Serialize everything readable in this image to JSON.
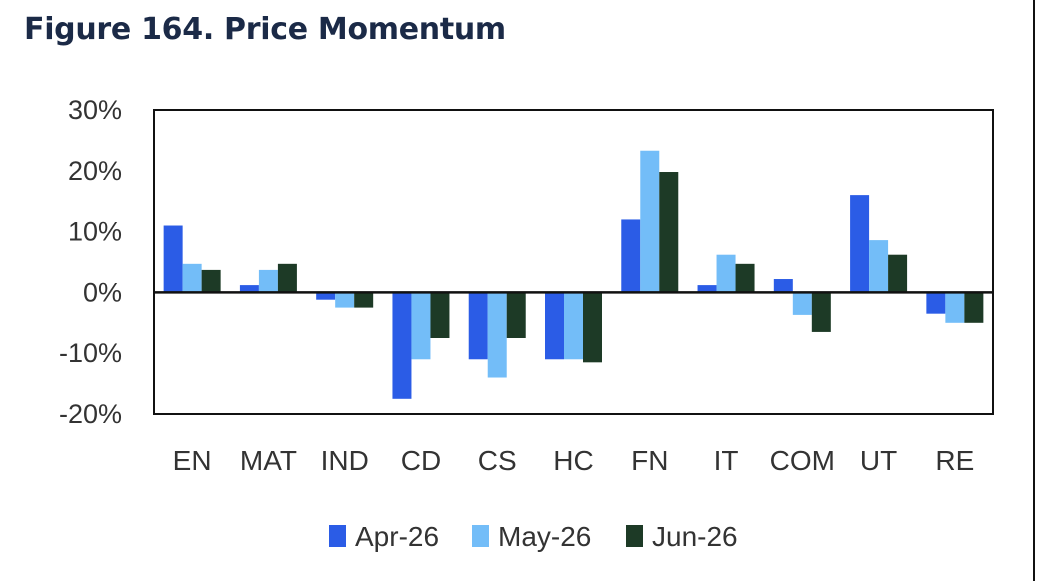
{
  "figure": {
    "title": "Figure 164. Price Momentum"
  },
  "chart_data": {
    "type": "bar",
    "title": "Figure 164. Price Momentum",
    "xlabel": "",
    "ylabel": "",
    "ylim": [
      -20,
      30
    ],
    "yticks": [
      30,
      20,
      10,
      0,
      -10,
      -20
    ],
    "ytick_labels": [
      "30%",
      "20%",
      "10%",
      "0%",
      "-10%",
      "-20%"
    ],
    "grid": false,
    "legend_position": "bottom",
    "categories": [
      "EN",
      "MAT",
      "IND",
      "CD",
      "CS",
      "HC",
      "FN",
      "IT",
      "COM",
      "UT",
      "RE"
    ],
    "series": [
      {
        "name": "Apr-26",
        "color": "#2b5ce6",
        "values": [
          11,
          1.2,
          -1.2,
          -17.5,
          -11,
          -11,
          12,
          1.2,
          2.2,
          16,
          -3.5
        ]
      },
      {
        "name": "May-26",
        "color": "#73bdf8",
        "values": [
          4.7,
          3.7,
          -2.5,
          -11,
          -14,
          -11,
          23.3,
          6.2,
          -3.7,
          8.6,
          -5
        ]
      },
      {
        "name": "Jun-26",
        "color": "#1d3a26",
        "values": [
          3.7,
          4.7,
          -2.5,
          -7.5,
          -7.5,
          -11.5,
          19.8,
          4.7,
          -6.5,
          6.2,
          -5
        ]
      }
    ]
  }
}
